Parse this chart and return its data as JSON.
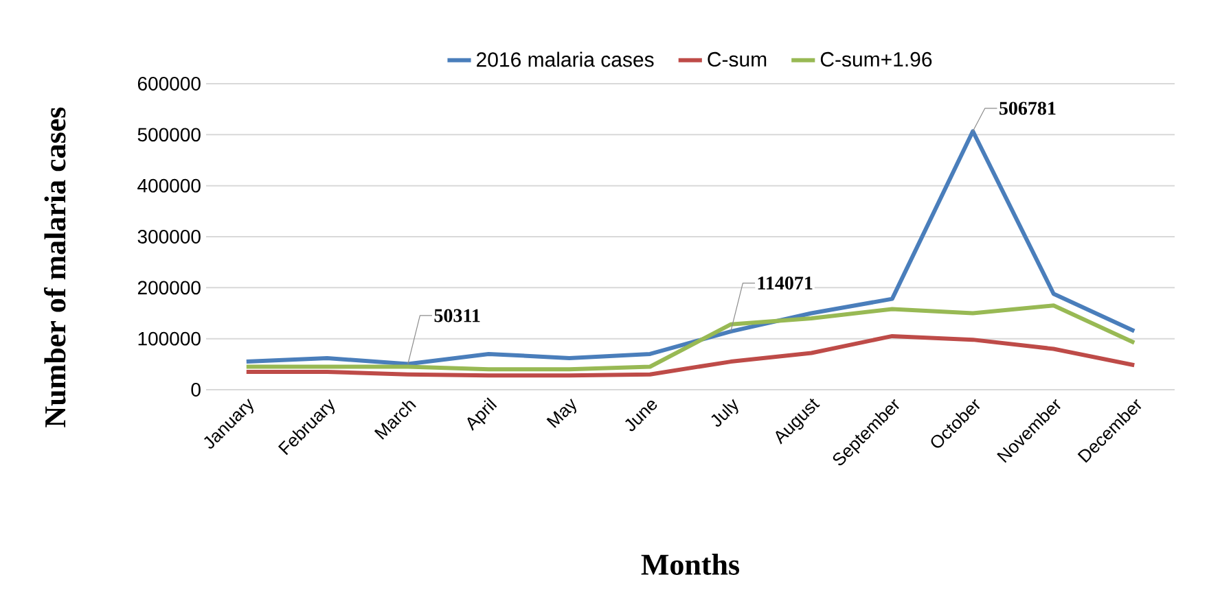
{
  "chart_data": {
    "type": "line",
    "xlabel": "Months",
    "ylabel": "Number of malaria cases",
    "categories": [
      "January",
      "February",
      "March",
      "April",
      "May",
      "June",
      "July",
      "August",
      "September",
      "October",
      "November",
      "December"
    ],
    "series": [
      {
        "name": "2016 malaria cases",
        "color": "#4a7ebb",
        "values": [
          55000,
          62000,
          50311,
          70000,
          62000,
          70000,
          114071,
          150000,
          178000,
          506781,
          188000,
          115000
        ]
      },
      {
        "name": "C-sum",
        "color": "#be4b48",
        "values": [
          35000,
          35000,
          30000,
          28000,
          28000,
          30000,
          55000,
          72000,
          105000,
          98000,
          80000,
          48000
        ]
      },
      {
        "name": "C-sum+1.96",
        "color": "#98b954",
        "values": [
          45000,
          45000,
          45000,
          40000,
          40000,
          45000,
          128000,
          140000,
          158000,
          150000,
          165000,
          92000
        ]
      }
    ],
    "ylim": [
      0,
      600000
    ],
    "yticks": [
      0,
      100000,
      200000,
      300000,
      400000,
      500000,
      600000
    ],
    "grid": "y",
    "legend": "top",
    "marker": "none",
    "line_style": "solid",
    "annotations": [
      {
        "text": "50311",
        "x": "March",
        "y": 50311
      },
      {
        "text": "114071",
        "x": "July",
        "y": 114071
      },
      {
        "text": "506781",
        "x": "October",
        "y": 506781
      }
    ]
  }
}
